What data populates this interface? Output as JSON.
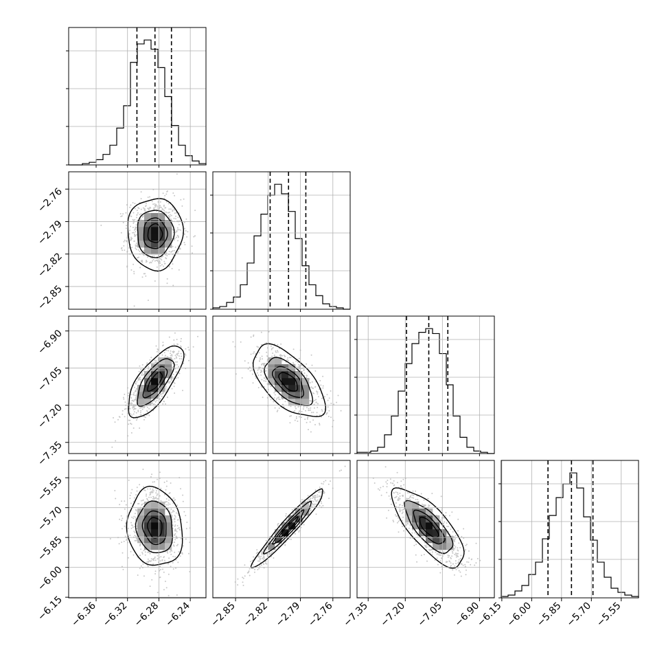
{
  "chart_data": {
    "type": "corner",
    "grid": true,
    "parameters": [
      {
        "range": [
          -6.395,
          -6.22
        ],
        "ticks": [
          -6.36,
          -6.32,
          -6.28,
          -6.24
        ],
        "tick_labels": [
          "−6.36",
          "−6.32",
          "−6.28",
          "−6.24"
        ],
        "quantiles": [
          -6.308,
          -6.285,
          -6.264
        ]
      },
      {
        "range": [
          -2.871,
          -2.744
        ],
        "ticks": [
          -2.85,
          -2.82,
          -2.79,
          -2.76
        ],
        "tick_labels": [
          "−2.85",
          "−2.82",
          "−2.79",
          "−2.76"
        ],
        "quantiles": [
          -2.818,
          -2.801,
          -2.785
        ]
      },
      {
        "range": [
          -7.395,
          -6.84
        ],
        "ticks": [
          -7.35,
          -7.2,
          -7.05,
          -6.9
        ],
        "tick_labels": [
          "−7.35",
          "−7.20",
          "−7.05",
          "−6.90"
        ],
        "quantiles": [
          -7.195,
          -7.105,
          -7.028
        ]
      },
      {
        "range": [
          -6.153,
          -5.463
        ],
        "ticks": [
          -6.15,
          -6.0,
          -5.85,
          -5.7,
          -5.55
        ],
        "tick_labels": [
          "−6.15",
          "−6.00",
          "−5.85",
          "−5.70",
          "−5.55"
        ],
        "quantiles": [
          -5.918,
          -5.8,
          -5.692
        ]
      }
    ],
    "histograms": [
      [
        0,
        0,
        1,
        2,
        4,
        8,
        15,
        28,
        45,
        78,
        92,
        95,
        88,
        74,
        52,
        30,
        15,
        7,
        3,
        1
      ],
      [
        1,
        2,
        5,
        9,
        18,
        34,
        54,
        70,
        84,
        92,
        85,
        72,
        52,
        32,
        18,
        10,
        4,
        2,
        1,
        0
      ],
      [
        1,
        1,
        2,
        5,
        15,
        30,
        50,
        72,
        88,
        97,
        100,
        96,
        80,
        55,
        30,
        13,
        5,
        2,
        1,
        0
      ],
      [
        1,
        2,
        5,
        9,
        17,
        26,
        43,
        60,
        73,
        83,
        91,
        80,
        59,
        42,
        26,
        15,
        7,
        4,
        2,
        1
      ]
    ],
    "pairs": [
      {
        "row": 1,
        "col": 0,
        "mean": [
          -6.285,
          -2.801
        ],
        "sd": [
          0.017,
          0.016
        ],
        "corr": 0.0
      },
      {
        "row": 2,
        "col": 0,
        "mean": [
          -6.285,
          -7.105
        ],
        "sd": [
          0.017,
          0.07
        ],
        "corr": 0.72
      },
      {
        "row": 2,
        "col": 1,
        "mean": [
          -2.801,
          -7.105
        ],
        "sd": [
          0.016,
          0.07
        ],
        "corr": -0.6
      },
      {
        "row": 3,
        "col": 0,
        "mean": [
          -6.285,
          -5.8
        ],
        "sd": [
          0.017,
          0.095
        ],
        "corr": -0.1
      },
      {
        "row": 3,
        "col": 1,
        "mean": [
          -2.801,
          -5.8
        ],
        "sd": [
          0.016,
          0.095
        ],
        "corr": 0.96
      },
      {
        "row": 3,
        "col": 2,
        "mean": [
          -7.105,
          -5.8
        ],
        "sd": [
          0.07,
          0.095
        ],
        "corr": -0.75
      }
    ],
    "contour_levels_sigma": [
      0.5,
      1.0,
      1.5,
      2.0
    ]
  }
}
